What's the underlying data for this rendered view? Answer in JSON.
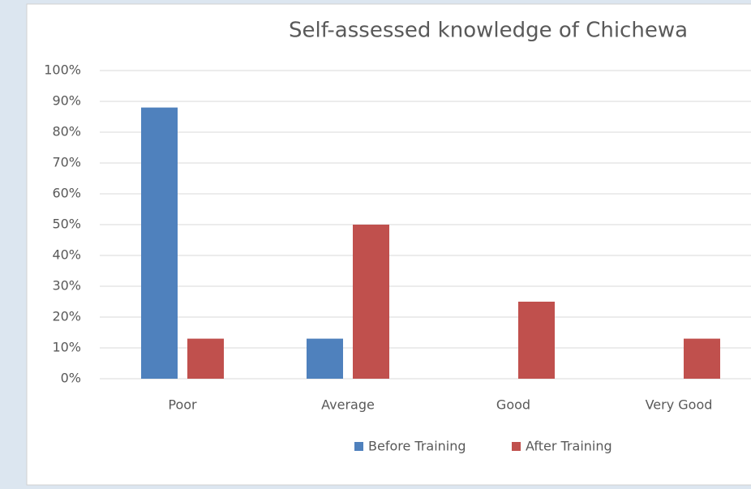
{
  "chart_data": {
    "type": "bar",
    "title": "Self-assessed knowledge of Chichewa",
    "categories": [
      "Poor",
      "Average",
      "Good",
      "Very Good"
    ],
    "series": [
      {
        "name": "Before Training",
        "color": "#4f81bd",
        "values": [
          88,
          13,
          0,
          0
        ]
      },
      {
        "name": "After Training",
        "color": "#c0504d",
        "values": [
          13,
          50,
          25,
          13
        ]
      }
    ],
    "ylim": [
      0,
      100
    ],
    "yticks": [
      {
        "value": 0,
        "label": "0%"
      },
      {
        "value": 10,
        "label": "10%"
      },
      {
        "value": 20,
        "label": "20%"
      },
      {
        "value": 30,
        "label": "30%"
      },
      {
        "value": 40,
        "label": "40%"
      },
      {
        "value": 50,
        "label": "50%"
      },
      {
        "value": 60,
        "label": "60%"
      },
      {
        "value": 70,
        "label": "70%"
      },
      {
        "value": 80,
        "label": "80%"
      },
      {
        "value": 90,
        "label": "90%"
      },
      {
        "value": 100,
        "label": "100%"
      }
    ],
    "grid": true,
    "legend": "bottom"
  }
}
